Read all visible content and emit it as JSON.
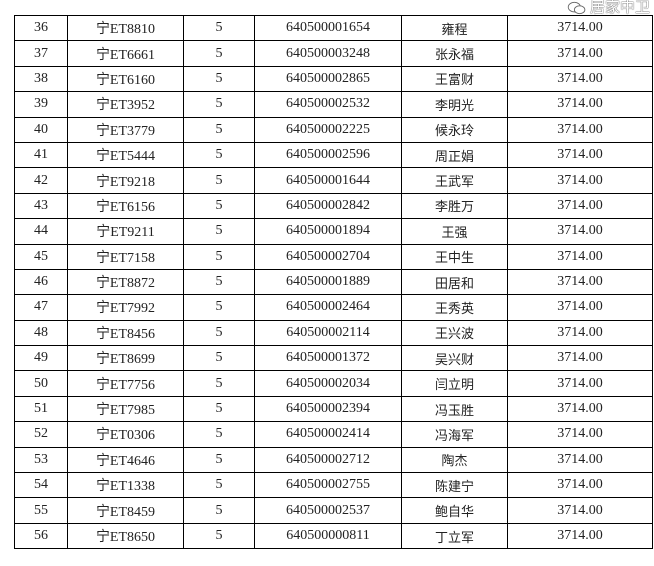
{
  "rows": [
    {
      "no": "36",
      "plate": "宁ET8810",
      "count": "5",
      "id": "640500001654",
      "name": "雍程",
      "amount": "3714.00"
    },
    {
      "no": "37",
      "plate": "宁ET6661",
      "count": "5",
      "id": "640500003248",
      "name": "张永福",
      "amount": "3714.00"
    },
    {
      "no": "38",
      "plate": "宁ET6160",
      "count": "5",
      "id": "640500002865",
      "name": "王富财",
      "amount": "3714.00"
    },
    {
      "no": "39",
      "plate": "宁ET3952",
      "count": "5",
      "id": "640500002532",
      "name": "李明光",
      "amount": "3714.00"
    },
    {
      "no": "40",
      "plate": "宁ET3779",
      "count": "5",
      "id": "640500002225",
      "name": "候永玲",
      "amount": "3714.00"
    },
    {
      "no": "41",
      "plate": "宁ET5444",
      "count": "5",
      "id": "640500002596",
      "name": "周正娟",
      "amount": "3714.00"
    },
    {
      "no": "42",
      "plate": "宁ET9218",
      "count": "5",
      "id": "640500001644",
      "name": "王武军",
      "amount": "3714.00"
    },
    {
      "no": "43",
      "plate": "宁ET6156",
      "count": "5",
      "id": "640500002842",
      "name": "李胜万",
      "amount": "3714.00"
    },
    {
      "no": "44",
      "plate": "宁ET9211",
      "count": "5",
      "id": "640500001894",
      "name": "王强",
      "amount": "3714.00"
    },
    {
      "no": "45",
      "plate": "宁ET7158",
      "count": "5",
      "id": "640500002704",
      "name": "王中生",
      "amount": "3714.00"
    },
    {
      "no": "46",
      "plate": "宁ET8872",
      "count": "5",
      "id": "640500001889",
      "name": "田居和",
      "amount": "3714.00"
    },
    {
      "no": "47",
      "plate": "宁ET7992",
      "count": "5",
      "id": "640500002464",
      "name": "王秀英",
      "amount": "3714.00"
    },
    {
      "no": "48",
      "plate": "宁ET8456",
      "count": "5",
      "id": "640500002114",
      "name": "王兴波",
      "amount": "3714.00"
    },
    {
      "no": "49",
      "plate": "宁ET8699",
      "count": "5",
      "id": "640500001372",
      "name": "吴兴财",
      "amount": "3714.00"
    },
    {
      "no": "50",
      "plate": "宁ET7756",
      "count": "5",
      "id": "640500002034",
      "name": "闫立明",
      "amount": "3714.00"
    },
    {
      "no": "51",
      "plate": "宁ET7985",
      "count": "5",
      "id": "640500002394",
      "name": "冯玉胜",
      "amount": "3714.00"
    },
    {
      "no": "52",
      "plate": "宁ET0306",
      "count": "5",
      "id": "640500002414",
      "name": "冯海军",
      "amount": "3714.00"
    },
    {
      "no": "53",
      "plate": "宁ET4646",
      "count": "5",
      "id": "640500002712",
      "name": "陶杰",
      "amount": "3714.00"
    },
    {
      "no": "54",
      "plate": "宁ET1338",
      "count": "5",
      "id": "640500002755",
      "name": "陈建宁",
      "amount": "3714.00"
    },
    {
      "no": "55",
      "plate": "宁ET8459",
      "count": "5",
      "id": "640500002537",
      "name": "鲍自华",
      "amount": "3714.00"
    },
    {
      "no": "56",
      "plate": "宁ET8650",
      "count": "5",
      "id": "640500000811",
      "name": "丁立军",
      "amount": "3714.00"
    }
  ],
  "watermark": {
    "text": "居家中卫",
    "icon": "wechat-icon"
  }
}
